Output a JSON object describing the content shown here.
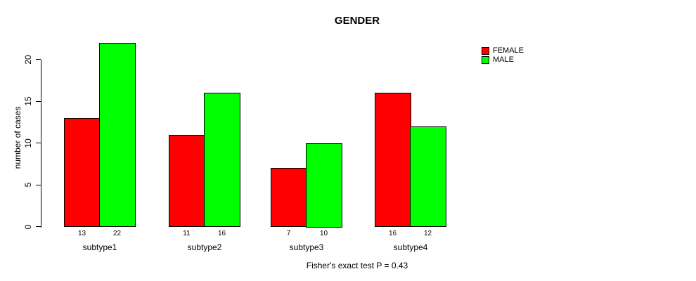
{
  "chart_data": {
    "type": "bar",
    "title": "GENDER",
    "xlabel": "",
    "ylabel": "number of cases",
    "categories": [
      "subtype1",
      "subtype2",
      "subtype3",
      "subtype4"
    ],
    "series": [
      {
        "name": "FEMALE",
        "color": "#ff0000",
        "values": [
          13,
          11,
          7,
          16
        ]
      },
      {
        "name": "MALE",
        "color": "#00ff00",
        "values": [
          22,
          16,
          10,
          12
        ]
      }
    ],
    "bar_value_labels": [
      [
        "13",
        "22"
      ],
      [
        "11",
        "16"
      ],
      [
        "7",
        "10"
      ],
      [
        "16",
        "12"
      ]
    ],
    "yticks": [
      0,
      5,
      10,
      15,
      20
    ],
    "ylim": [
      0,
      22
    ],
    "grid": false,
    "legend_position": "right",
    "annotation": "Fisher's exact test P = 0.43"
  },
  "colors": {
    "female": "#ff0000",
    "male": "#00ff00",
    "axis": "#000000",
    "background": "#ffffff"
  }
}
